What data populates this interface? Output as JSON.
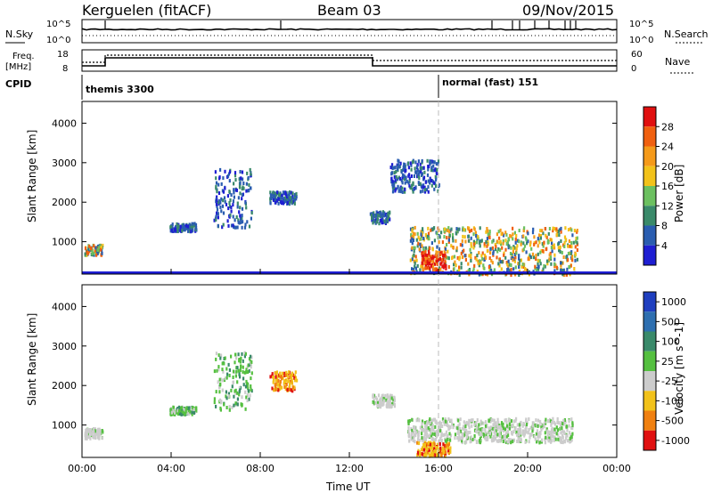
{
  "header": {
    "station": "Kerguelen (fitACF)",
    "beam": "Beam 03",
    "date": "09/Nov/2015"
  },
  "noise_panel": {
    "left_label": "N.Sky",
    "left_ticks": [
      "10^5",
      "10^0"
    ],
    "right_ticks": [
      "10^5",
      "10^0"
    ],
    "right_label": "N.Search"
  },
  "freq_panel": {
    "left_label_line1": "Freq.",
    "left_label_line2": "[MHz]",
    "left_ticks": [
      "18",
      "8"
    ],
    "right_ticks": [
      "60",
      "0"
    ],
    "right_label": "Nave"
  },
  "cpid": {
    "label": "CPID",
    "segments": [
      {
        "start_hour": 0,
        "text": "themis 3300"
      },
      {
        "start_hour": 16,
        "text": "normal (fast) 151"
      }
    ]
  },
  "x_axis": {
    "label": "Time UT",
    "ticks": [
      "00:00",
      "04:00",
      "08:00",
      "12:00",
      "16:00",
      "20:00",
      "00:00"
    ],
    "range_hours": [
      0,
      24
    ]
  },
  "chart_data": [
    {
      "type": "heatmap",
      "name": "power",
      "ylabel": "Slant Range [km]",
      "yticks": [
        "1000",
        "2000",
        "3000",
        "4000"
      ],
      "ylim": [
        180,
        4550
      ],
      "colorbar_label": "Power [dB]",
      "colorbar_ticks": [
        "4",
        "8",
        "12",
        "16",
        "20",
        "24",
        "28"
      ],
      "colorbar_range": [
        0,
        32
      ],
      "colors": [
        "#1e1ed2",
        "#2a5db0",
        "#3a8a6a",
        "#6cc060",
        "#f2c21a",
        "#f59a1a",
        "#f06010",
        "#e01010"
      ],
      "features": [
        {
          "time": [
            0.1,
            0.9
          ],
          "range": [
            700,
            950
          ],
          "level": "mixed"
        },
        {
          "time": [
            3.9,
            5.1
          ],
          "range": [
            1300,
            1500
          ],
          "level": "low"
        },
        {
          "time": [
            5.9,
            7.6
          ],
          "range": [
            1400,
            2900
          ],
          "level": "low"
        },
        {
          "time": [
            8.4,
            9.6
          ],
          "range": [
            2000,
            2300
          ],
          "level": "low"
        },
        {
          "time": [
            12.9,
            13.8
          ],
          "range": [
            1500,
            1800
          ],
          "level": "low"
        },
        {
          "time": [
            13.8,
            16.0
          ],
          "range": [
            2300,
            3100
          ],
          "level": "low"
        },
        {
          "time": [
            14.7,
            22.2
          ],
          "range": [
            200,
            1400
          ],
          "level": "high"
        },
        {
          "time": [
            15.2,
            16.3
          ],
          "range": [
            300,
            800
          ],
          "level": "max"
        }
      ]
    },
    {
      "type": "heatmap",
      "name": "velocity",
      "ylabel": "Slant Range [km]",
      "yticks": [
        "1000",
        "2000",
        "3000",
        "4000"
      ],
      "ylim": [
        180,
        4550
      ],
      "colorbar_label": "Velocity [m s^-1]",
      "colorbar_ticks": [
        "1000",
        "500",
        "100",
        "25",
        "-25",
        "-100",
        "-500",
        "-1000"
      ],
      "colors": [
        "#1f3fbf",
        "#2e6fb0",
        "#3a8a6a",
        "#55c040",
        "#cccccc",
        "#f2c21a",
        "#f08010",
        "#e01010"
      ],
      "features": [
        {
          "time": [
            0.1,
            0.9
          ],
          "range": [
            700,
            950
          ],
          "level": "grey"
        },
        {
          "time": [
            3.9,
            5.1
          ],
          "range": [
            1300,
            1500
          ],
          "level": "green"
        },
        {
          "time": [
            5.9,
            7.6
          ],
          "range": [
            1400,
            2900
          ],
          "level": "green"
        },
        {
          "time": [
            8.4,
            9.6
          ],
          "range": [
            1900,
            2400
          ],
          "level": "orange"
        },
        {
          "time": [
            13.0,
            14.0
          ],
          "range": [
            1500,
            1800
          ],
          "level": "grey"
        },
        {
          "time": [
            14.6,
            22.0
          ],
          "range": [
            600,
            1200
          ],
          "level": "grey"
        },
        {
          "time": [
            15.0,
            16.5
          ],
          "range": [
            250,
            600
          ],
          "level": "orange"
        }
      ]
    }
  ],
  "styles": {
    "axis": "#000000",
    "dashline": "#bbbbbb"
  }
}
